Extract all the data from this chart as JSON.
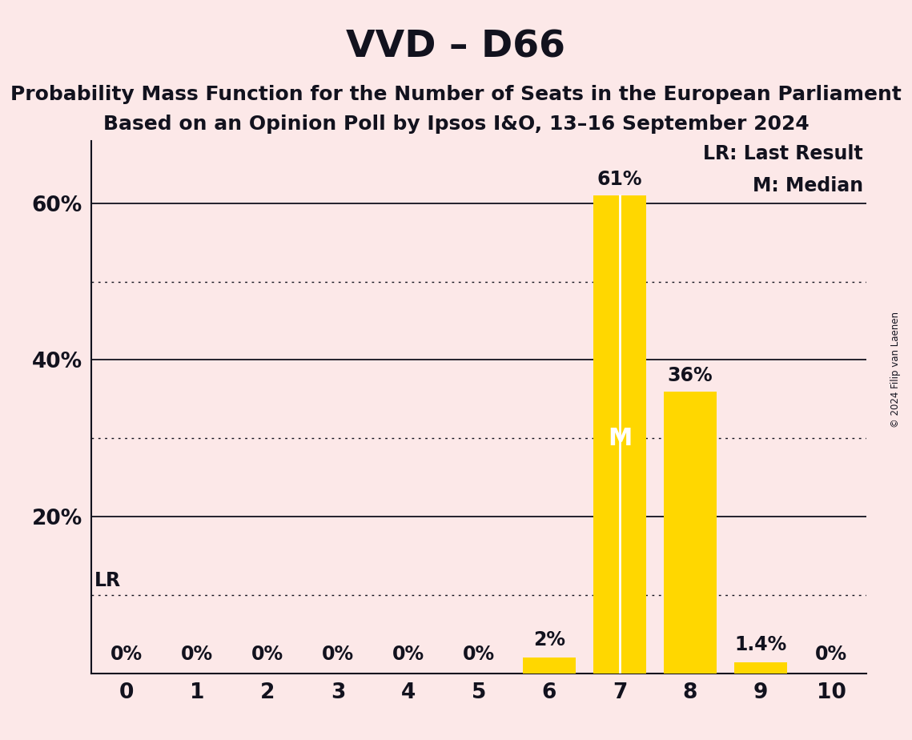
{
  "title": "VVD – D66",
  "subtitle1": "Probability Mass Function for the Number of Seats in the European Parliament",
  "subtitle2": "Based on an Opinion Poll by Ipsos I&O, 13–16 September 2024",
  "copyright": "© 2024 Filip van Laenen",
  "categories": [
    0,
    1,
    2,
    3,
    4,
    5,
    6,
    7,
    8,
    9,
    10
  ],
  "values": [
    0,
    0,
    0,
    0,
    0,
    0,
    2,
    61,
    36,
    1.4,
    0
  ],
  "bar_color": "#FFD700",
  "background_color": "#fce8e8",
  "text_color": "#12121e",
  "median_seat": 7,
  "lr_value": 10,
  "ylim_max": 68,
  "ytick_labels": [
    20,
    40,
    60
  ],
  "solid_yticks": [
    20,
    40,
    60
  ],
  "dotted_yticks": [
    10,
    30,
    50
  ],
  "legend_lr": "LR: Last Result",
  "legend_m": "M: Median",
  "title_fontsize": 34,
  "subtitle_fontsize": 18,
  "label_fontsize": 17,
  "tick_fontsize": 19
}
